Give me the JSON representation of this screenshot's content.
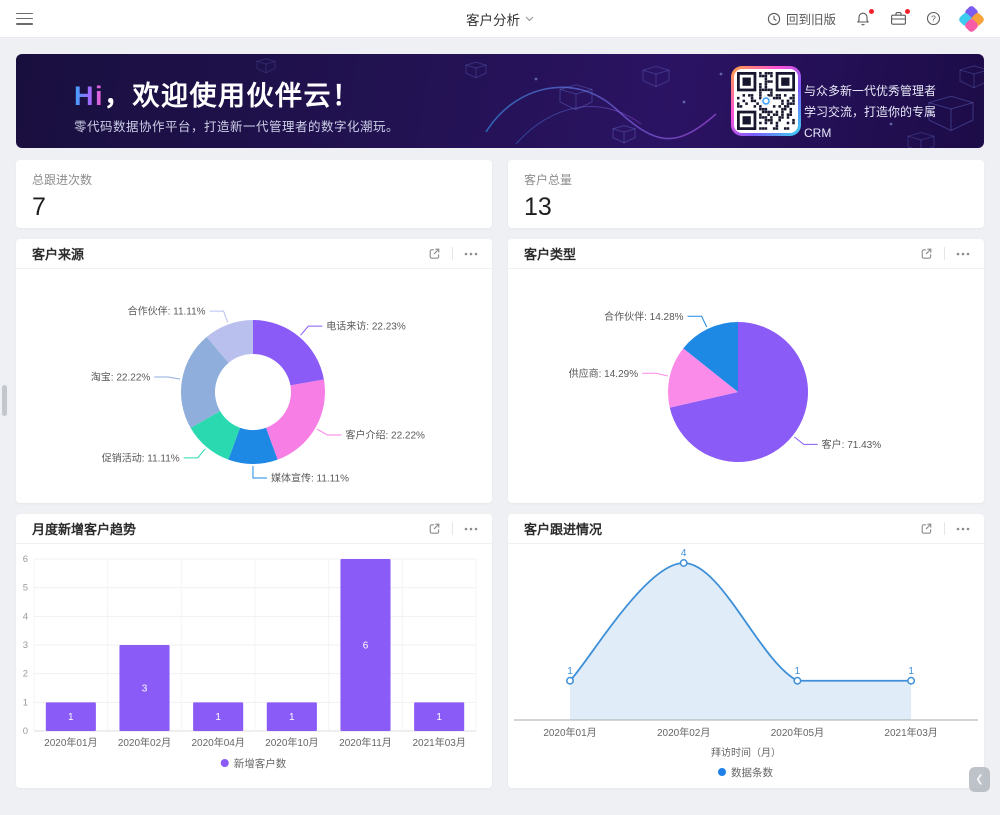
{
  "topbar": {
    "title": "客户分析",
    "back_to_old_label": "回到旧版"
  },
  "banner": {
    "greeting_accent": "Hi",
    "greeting_rest": "，欢迎使用伙伴云！",
    "subtitle": "零代码数据协作平台，打造新一代管理者的数字化潮玩。",
    "qr_caption_line1": "与众多新一代优秀管理者",
    "qr_caption_line2": "学习交流，打造你的专属CRM"
  },
  "stats": [
    {
      "label": "总跟进次数",
      "value": "7"
    },
    {
      "label": "客户总量",
      "value": "13"
    }
  ],
  "chart_data": [
    {
      "type": "pie",
      "title": "客户来源",
      "donut": true,
      "legend_position": "none",
      "series": [
        {
          "name": "电话来访",
          "value": 22.23,
          "color": "#8A5BF6"
        },
        {
          "name": "客户介绍",
          "value": 22.22,
          "color": "#F77EE4"
        },
        {
          "name": "媒体宣传",
          "value": 11.11,
          "color": "#1E88E5"
        },
        {
          "name": "促销活动",
          "value": 11.11,
          "color": "#2BD9B1"
        },
        {
          "name": "淘宝",
          "value": 22.22,
          "color": "#8FAEDC"
        },
        {
          "name": "合作伙伴",
          "value": 11.11,
          "color": "#B9C0EE"
        }
      ]
    },
    {
      "type": "pie",
      "title": "客户类型",
      "donut": false,
      "legend_position": "none",
      "series": [
        {
          "name": "客户",
          "value": 71.43,
          "color": "#8A5BF6"
        },
        {
          "name": "供应商",
          "value": 14.29,
          "color": "#FB8BE9"
        },
        {
          "name": "合作伙伴",
          "value": 14.28,
          "color": "#1E88E5"
        }
      ]
    },
    {
      "type": "bar",
      "title": "月度新增客户趋势",
      "categories": [
        "2020年01月",
        "2020年02月",
        "2020年04月",
        "2020年10月",
        "2020年11月",
        "2021年03月"
      ],
      "values": [
        1,
        3,
        1,
        1,
        6,
        1
      ],
      "ylim": [
        0,
        6
      ],
      "ytick_step": 1,
      "grid": true,
      "legend": "新增客户数",
      "legend_position": "bottom",
      "color": "#8A5BF6",
      "xlabel": "",
      "ylabel": ""
    },
    {
      "type": "line",
      "title": "客户跟进情况",
      "categories": [
        "2020年01月",
        "2020年02月",
        "2020年05月",
        "2021年03月"
      ],
      "values": [
        1,
        4,
        1,
        1
      ],
      "ylim": [
        0,
        4.3
      ],
      "smooth": true,
      "area": true,
      "xlabel": "拜访时间（月）",
      "legend": "数据条数",
      "legend_position": "bottom",
      "color": "#3D8FD8",
      "point_label_color": "#3D8FD8"
    }
  ],
  "misc": {
    "collapse_glyph": "❮"
  }
}
